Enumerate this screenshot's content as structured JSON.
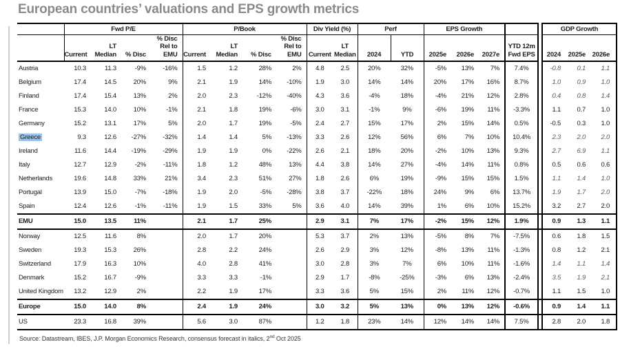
{
  "page": {
    "title": "European countries’ valuations and EPS growth metrics",
    "source": {
      "prefix": "Source: Datastream, IBES, J.P. Morgan Economics Research, consensus forecast in italics, 2",
      "sup": "nd",
      "rest": " Oct 2025"
    }
  },
  "colors": {
    "highlight_blue": "#9dc3e6",
    "title_gray": "#8a8a8e",
    "italic_gray": "#595959"
  },
  "header": {
    "groups": {
      "fwd_pe": "Fwd P/E",
      "p_book": "P/Book",
      "div_yield": "Div Yield (%)",
      "perf": "Perf",
      "eps_growth": "EPS Growth",
      "gdp_growth": "GDP Growth"
    },
    "sub": {
      "current": "Current",
      "lt_median": "LT Median",
      "disc": "% Disc",
      "disc_rel": "% Disc Rel to EMU",
      "y2024": "2024",
      "ytd": "YTD",
      "e2025": "2025e",
      "e2026": "2026e",
      "e2027": "2027e",
      "ytd_12m": "YTD 12m Fwd EPS"
    }
  },
  "chart_data": {
    "type": "table",
    "title": "European countries’ valuations and EPS growth metrics",
    "columns": [
      "Country",
      "Fwd P/E Current",
      "Fwd P/E LT Median",
      "Fwd P/E % Disc",
      "Fwd P/E % Disc Rel to EMU",
      "P/Book Current",
      "P/Book LT Median",
      "P/Book % Disc",
      "P/Book % Disc Rel to EMU",
      "Div Yield Current",
      "Div Yield LT Median",
      "Perf 2024",
      "Perf YTD",
      "EPS Growth 2025e",
      "EPS Growth 2026e",
      "EPS Growth 2027e",
      "YTD 12m Fwd EPS",
      "GDP Growth 2024",
      "GDP Growth 2025e",
      "GDP Growth 2026e"
    ],
    "rows": [
      {
        "country": "Austria",
        "fwd_pe": [
          "10.3",
          "11.3",
          "-9%",
          "-16%"
        ],
        "p_book": [
          "1.5",
          "1.2",
          "28%",
          "2%"
        ],
        "div_yield": [
          "4.8",
          "2.5"
        ],
        "perf": [
          "20%",
          "32%"
        ],
        "eps_growth": [
          "-5%",
          "13%",
          "7%"
        ],
        "ytd_12m_fwd_eps": "7.4%",
        "gdp_growth": [
          "-0.8",
          "0.1",
          "1.1"
        ],
        "gdp_italic": true
      },
      {
        "country": "Belgium",
        "fwd_pe": [
          "17.4",
          "14.5",
          "20%",
          "9%"
        ],
        "p_book": [
          "2.1",
          "1.9",
          "14%",
          "-10%"
        ],
        "div_yield": [
          "1.9",
          "3.0"
        ],
        "perf": [
          "14%",
          "14%"
        ],
        "eps_growth": [
          "20%",
          "17%",
          "16%"
        ],
        "ytd_12m_fwd_eps": "8.7%",
        "gdp_growth": [
          "1.0",
          "0.9",
          "1.0"
        ],
        "gdp_italic": true
      },
      {
        "country": "Finland",
        "fwd_pe": [
          "17.4",
          "15.4",
          "13%",
          "2%"
        ],
        "p_book": [
          "2.0",
          "2.3",
          "-12%",
          "-40%"
        ],
        "div_yield": [
          "4.3",
          "3.6"
        ],
        "perf": [
          "-4%",
          "18%"
        ],
        "eps_growth": [
          "-4%",
          "21%",
          "12%"
        ],
        "ytd_12m_fwd_eps": "2.8%",
        "gdp_growth": [
          "0.4",
          "0.8",
          "1.4"
        ],
        "gdp_italic": true
      },
      {
        "country": "France",
        "fwd_pe": [
          "15.3",
          "14.0",
          "10%",
          "-1%"
        ],
        "p_book": [
          "2.1",
          "1.8",
          "19%",
          "-6%"
        ],
        "div_yield": [
          "3.0",
          "3.1"
        ],
        "perf": [
          "-1%",
          "9%"
        ],
        "eps_growth": [
          "-6%",
          "19%",
          "11%"
        ],
        "ytd_12m_fwd_eps": "-3.3%",
        "gdp_growth": [
          "1.1",
          "0.7",
          "1.0"
        ],
        "gdp_italic": false
      },
      {
        "country": "Germany",
        "fwd_pe": [
          "15.2",
          "13.1",
          "17%",
          "5%"
        ],
        "p_book": [
          "2.0",
          "1.7",
          "19%",
          "-5%"
        ],
        "div_yield": [
          "2.4",
          "2.7"
        ],
        "perf": [
          "15%",
          "17%"
        ],
        "eps_growth": [
          "2%",
          "15%",
          "14%"
        ],
        "ytd_12m_fwd_eps": "0.5%",
        "gdp_growth": [
          "-0.5",
          "0.3",
          "1.0"
        ],
        "gdp_italic": false
      },
      {
        "country": "Greece",
        "highlight": true,
        "fwd_pe": [
          "9.3",
          "12.6",
          "-27%",
          "-32%"
        ],
        "p_book": [
          "1.4",
          "1.4",
          "5%",
          "-13%"
        ],
        "div_yield": [
          "3.3",
          "2.6"
        ],
        "perf": [
          "12%",
          "56%"
        ],
        "eps_growth": [
          "6%",
          "7%",
          "10%"
        ],
        "ytd_12m_fwd_eps": "10.4%",
        "gdp_growth": [
          "2.3",
          "2.0",
          "2.0"
        ],
        "gdp_italic": true
      },
      {
        "country": "Ireland",
        "fwd_pe": [
          "11.6",
          "14.4",
          "-19%",
          "-29%"
        ],
        "p_book": [
          "1.9",
          "1.9",
          "0%",
          "-22%"
        ],
        "div_yield": [
          "2.6",
          "2.1"
        ],
        "perf": [
          "18%",
          "20%"
        ],
        "eps_growth": [
          "-2%",
          "10%",
          "13%"
        ],
        "ytd_12m_fwd_eps": "9.3%",
        "gdp_growth": [
          "2.7",
          "6.9",
          "1.1"
        ],
        "gdp_italic": true
      },
      {
        "country": "Italy",
        "fwd_pe": [
          "12.7",
          "12.9",
          "-2%",
          "-11%"
        ],
        "p_book": [
          "1.8",
          "1.2",
          "48%",
          "13%"
        ],
        "div_yield": [
          "4.4",
          "3.8"
        ],
        "perf": [
          "14%",
          "27%"
        ],
        "eps_growth": [
          "-4%",
          "14%",
          "11%"
        ],
        "ytd_12m_fwd_eps": "0.8%",
        "gdp_growth": [
          "0.5",
          "0.6",
          "0.6"
        ],
        "gdp_italic": false
      },
      {
        "country": "Netherlands",
        "fwd_pe": [
          "19.6",
          "14.8",
          "33%",
          "21%"
        ],
        "p_book": [
          "3.4",
          "2.3",
          "51%",
          "27%"
        ],
        "div_yield": [
          "1.8",
          "2.6"
        ],
        "perf": [
          "6%",
          "19%"
        ],
        "eps_growth": [
          "-9%",
          "15%",
          "15%"
        ],
        "ytd_12m_fwd_eps": "1.5%",
        "gdp_growth": [
          "1.1",
          "1.4",
          "1.0"
        ],
        "gdp_italic": true
      },
      {
        "country": "Portugal",
        "fwd_pe": [
          "13.9",
          "15.0",
          "-7%",
          "-18%"
        ],
        "p_book": [
          "1.9",
          "2.0",
          "-5%",
          "-28%"
        ],
        "div_yield": [
          "3.8",
          "3.7"
        ],
        "perf": [
          "-22%",
          "18%"
        ],
        "eps_growth": [
          "24%",
          "9%",
          "6%"
        ],
        "ytd_12m_fwd_eps": "13.7%",
        "gdp_growth": [
          "1.9",
          "1.7",
          "2.0"
        ],
        "gdp_italic": true
      },
      {
        "country": "Spain",
        "fwd_pe": [
          "12.4",
          "12.6",
          "-1%",
          "-11%"
        ],
        "p_book": [
          "1.9",
          "1.5",
          "33%",
          "5%"
        ],
        "div_yield": [
          "3.6",
          "4.0"
        ],
        "perf": [
          "14%",
          "39%"
        ],
        "eps_growth": [
          "1%",
          "6%",
          "10%"
        ],
        "ytd_12m_fwd_eps": "15.2%",
        "gdp_growth": [
          "3.2",
          "2.7",
          "2.0"
        ],
        "gdp_italic": false
      },
      {
        "country": "EMU",
        "bold": true,
        "border_top": true,
        "border_bottom": true,
        "fwd_pe": [
          "15.0",
          "13.5",
          "11%",
          ""
        ],
        "p_book": [
          "2.1",
          "1.7",
          "25%",
          ""
        ],
        "div_yield": [
          "2.9",
          "3.1"
        ],
        "perf": [
          "7%",
          "17%"
        ],
        "eps_growth": [
          "-2%",
          "15%",
          "12%"
        ],
        "ytd_12m_fwd_eps": "1.9%",
        "gdp_growth": [
          "0.9",
          "1.3",
          "1.1"
        ],
        "gdp_italic": false
      },
      {
        "country": "Norway",
        "border_top": true,
        "fwd_pe": [
          "12.5",
          "11.6",
          "8%",
          ""
        ],
        "p_book": [
          "2.0",
          "1.7",
          "20%",
          ""
        ],
        "div_yield": [
          "5.3",
          "3.7"
        ],
        "perf": [
          "2%",
          "13%"
        ],
        "eps_growth": [
          "-5%",
          "8%",
          "7%"
        ],
        "ytd_12m_fwd_eps": "-7.5%",
        "gdp_growth": [
          "0.6",
          "1.8",
          "1.5"
        ],
        "gdp_italic": false
      },
      {
        "country": "Sweden",
        "fwd_pe": [
          "19.3",
          "15.3",
          "26%",
          ""
        ],
        "p_book": [
          "2.8",
          "2.2",
          "24%",
          ""
        ],
        "div_yield": [
          "2.6",
          "2.9"
        ],
        "perf": [
          "3%",
          "12%"
        ],
        "eps_growth": [
          "-8%",
          "13%",
          "11%"
        ],
        "ytd_12m_fwd_eps": "-1.3%",
        "gdp_growth": [
          "0.8",
          "1.2",
          "2.1"
        ],
        "gdp_italic": false
      },
      {
        "country": "Switzerland",
        "fwd_pe": [
          "17.9",
          "16.3",
          "10%",
          ""
        ],
        "p_book": [
          "4.0",
          "2.8",
          "41%",
          ""
        ],
        "div_yield": [
          "3.0",
          "2.8"
        ],
        "perf": [
          "3%",
          "7%"
        ],
        "eps_growth": [
          "6%",
          "10%",
          "11%"
        ],
        "ytd_12m_fwd_eps": "-1.6%",
        "gdp_growth": [
          "1.4",
          "1.1",
          "1.4"
        ],
        "gdp_italic": true
      },
      {
        "country": "Denmark",
        "fwd_pe": [
          "15.2",
          "16.7",
          "-9%",
          ""
        ],
        "p_book": [
          "3.3",
          "3.3",
          "-1%",
          ""
        ],
        "div_yield": [
          "2.9",
          "1.7"
        ],
        "perf": [
          "-8%",
          "-25%"
        ],
        "eps_growth": [
          "-3%",
          "6%",
          "13%"
        ],
        "ytd_12m_fwd_eps": "-2.4%",
        "gdp_growth": [
          "3.5",
          "1.9",
          "2.1"
        ],
        "gdp_italic": true
      },
      {
        "country": "United Kingdom",
        "fwd_pe": [
          "13.2",
          "12.9",
          "2%",
          ""
        ],
        "p_book": [
          "2.2",
          "1.9",
          "17%",
          ""
        ],
        "div_yield": [
          "3.3",
          "3.6"
        ],
        "perf": [
          "5%",
          "15%"
        ],
        "eps_growth": [
          "2%",
          "11%",
          "12%"
        ],
        "ytd_12m_fwd_eps": "-0.7%",
        "gdp_growth": [
          "1.1",
          "1.5",
          "1.0"
        ],
        "gdp_italic": false
      },
      {
        "country": "Europe",
        "bold": true,
        "border_top": true,
        "border_bottom": true,
        "fwd_pe": [
          "15.0",
          "14.0",
          "8%",
          ""
        ],
        "p_book": [
          "2.4",
          "1.9",
          "24%",
          ""
        ],
        "div_yield": [
          "3.0",
          "3.2"
        ],
        "perf": [
          "5%",
          "13%"
        ],
        "eps_growth": [
          "0%",
          "13%",
          "12%"
        ],
        "ytd_12m_fwd_eps": "-0.6%",
        "gdp_growth": [
          "0.9",
          "1.4",
          "1.1"
        ],
        "gdp_italic": false
      },
      {
        "country": "US",
        "border_top": true,
        "border_bottom": true,
        "fwd_pe": [
          "23.3",
          "16.8",
          "39%",
          ""
        ],
        "p_book": [
          "5.6",
          "3.0",
          "87%",
          ""
        ],
        "div_yield": [
          "1.2",
          "1.8"
        ],
        "perf": [
          "23%",
          "14%"
        ],
        "eps_growth": [
          "12%",
          "14%",
          "14%"
        ],
        "ytd_12m_fwd_eps": "7.5%",
        "gdp_growth": [
          "2.8",
          "2.0",
          "1.8"
        ],
        "gdp_italic": false
      }
    ],
    "footer": "Source: Datastream, IBES, J.P. Morgan Economics Research, consensus forecast in italics, 2nd Oct 2025"
  }
}
